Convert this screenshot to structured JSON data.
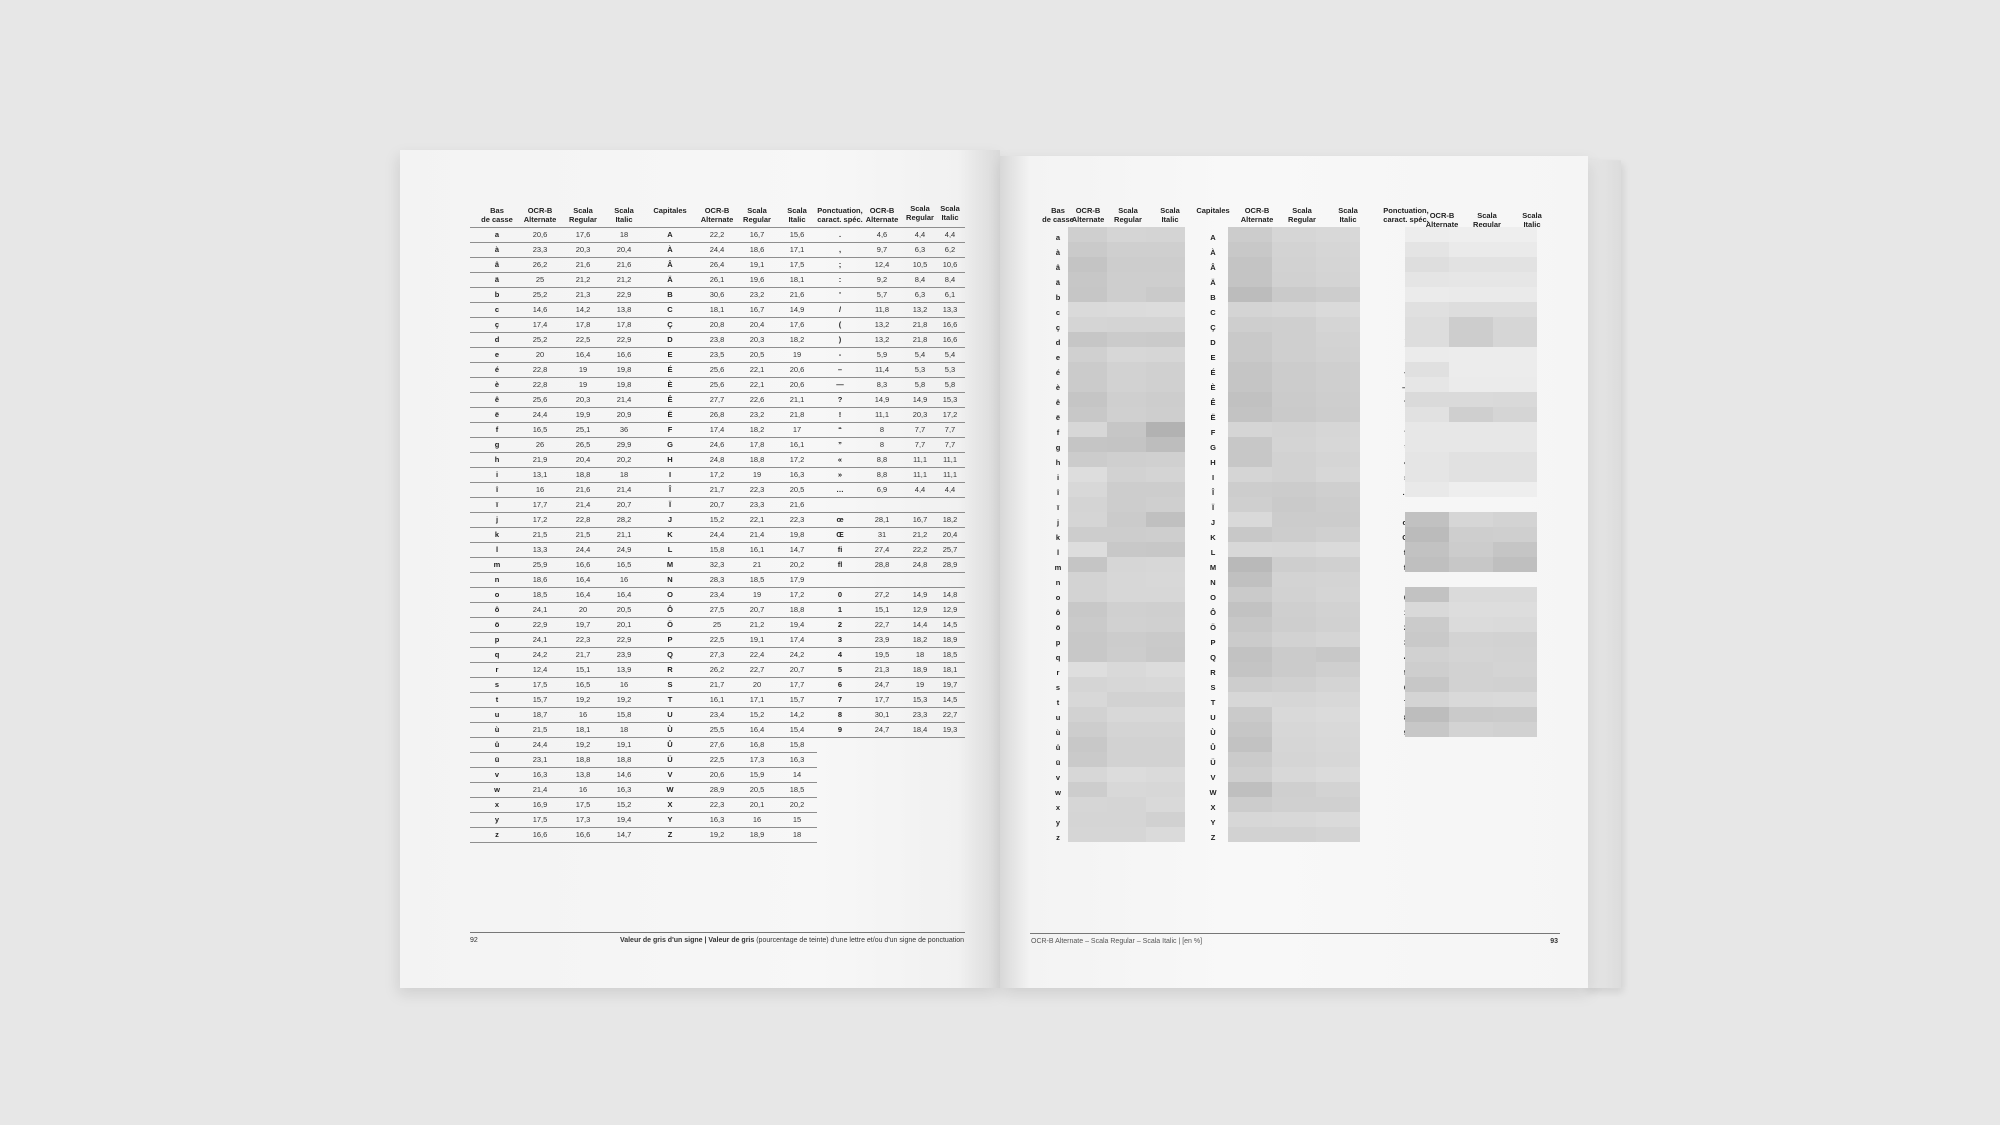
{
  "headers": [
    "Bas\nde casse",
    "OCR-B\nAlternate",
    "Scala\nRegular",
    "Scala\nItalic",
    "Capitales",
    "OCR-B\nAlternate",
    "Scala\nRegular",
    "Scala\nItalic",
    "Ponctuation,\ncaract. spéc.",
    "OCR-B\nAlternate",
    "Scala\nRegular",
    "Scala\nItalic"
  ],
  "table": {
    "lowercase": [
      [
        "a",
        "20,6",
        "17,6",
        "18"
      ],
      [
        "à",
        "23,3",
        "20,3",
        "20,4"
      ],
      [
        "â",
        "26,2",
        "21,6",
        "21,6"
      ],
      [
        "ä",
        "25",
        "21,2",
        "21,2"
      ],
      [
        "b",
        "25,2",
        "21,3",
        "22,9"
      ],
      [
        "c",
        "14,6",
        "14,2",
        "13,8"
      ],
      [
        "ç",
        "17,4",
        "17,8",
        "17,8"
      ],
      [
        "d",
        "25,2",
        "22,5",
        "22,9"
      ],
      [
        "e",
        "20",
        "16,4",
        "16,6"
      ],
      [
        "é",
        "22,8",
        "19",
        "19,8"
      ],
      [
        "è",
        "22,8",
        "19",
        "19,8"
      ],
      [
        "ê",
        "25,6",
        "20,3",
        "21,4"
      ],
      [
        "ë",
        "24,4",
        "19,9",
        "20,9"
      ],
      [
        "f",
        "16,5",
        "25,1",
        "36"
      ],
      [
        "g",
        "26",
        "26,5",
        "29,9"
      ],
      [
        "h",
        "21,9",
        "20,4",
        "20,2"
      ],
      [
        "i",
        "13,1",
        "18,8",
        "18"
      ],
      [
        "î",
        "16",
        "21,6",
        "21,4"
      ],
      [
        "ï",
        "17,7",
        "21,4",
        "20,7"
      ],
      [
        "j",
        "17,2",
        "22,8",
        "28,2"
      ],
      [
        "k",
        "21,5",
        "21,5",
        "21,1"
      ],
      [
        "l",
        "13,3",
        "24,4",
        "24,9"
      ],
      [
        "m",
        "25,9",
        "16,6",
        "16,5"
      ],
      [
        "n",
        "18,6",
        "16,4",
        "16"
      ],
      [
        "o",
        "18,5",
        "16,4",
        "16,4"
      ],
      [
        "ô",
        "24,1",
        "20",
        "20,5"
      ],
      [
        "ö",
        "22,9",
        "19,7",
        "20,1"
      ],
      [
        "p",
        "24,1",
        "22,3",
        "22,9"
      ],
      [
        "q",
        "24,2",
        "21,7",
        "23,9"
      ],
      [
        "r",
        "12,4",
        "15,1",
        "13,9"
      ],
      [
        "s",
        "17,5",
        "16,5",
        "16"
      ],
      [
        "t",
        "15,7",
        "19,2",
        "19,2"
      ],
      [
        "u",
        "18,7",
        "16",
        "15,8"
      ],
      [
        "ù",
        "21,5",
        "18,1",
        "18"
      ],
      [
        "û",
        "24,4",
        "19,2",
        "19,1"
      ],
      [
        "ü",
        "23,1",
        "18,8",
        "18,8"
      ],
      [
        "v",
        "16,3",
        "13,8",
        "14,6"
      ],
      [
        "w",
        "21,4",
        "16",
        "16,3"
      ],
      [
        "x",
        "16,9",
        "17,5",
        "15,2"
      ],
      [
        "y",
        "17,5",
        "17,3",
        "19,4"
      ],
      [
        "z",
        "16,6",
        "16,6",
        "14,7"
      ]
    ],
    "capitals": [
      [
        "A",
        "22,2",
        "16,7",
        "15,6"
      ],
      [
        "À",
        "24,4",
        "18,6",
        "17,1"
      ],
      [
        "Â",
        "26,4",
        "19,1",
        "17,5"
      ],
      [
        "Ä",
        "26,1",
        "19,6",
        "18,1"
      ],
      [
        "B",
        "30,6",
        "23,2",
        "21,6"
      ],
      [
        "C",
        "18,1",
        "16,7",
        "14,9"
      ],
      [
        "Ç",
        "20,8",
        "20,4",
        "17,6"
      ],
      [
        "D",
        "23,8",
        "20,3",
        "18,2"
      ],
      [
        "E",
        "23,5",
        "20,5",
        "19"
      ],
      [
        "É",
        "25,6",
        "22,1",
        "20,6"
      ],
      [
        "È",
        "25,6",
        "22,1",
        "20,6"
      ],
      [
        "Ê",
        "27,7",
        "22,6",
        "21,1"
      ],
      [
        "Ë",
        "26,8",
        "23,2",
        "21,8"
      ],
      [
        "F",
        "17,4",
        "18,2",
        "17"
      ],
      [
        "G",
        "24,6",
        "17,8",
        "16,1"
      ],
      [
        "H",
        "24,8",
        "18,8",
        "17,2"
      ],
      [
        "I",
        "17,2",
        "19",
        "16,3"
      ],
      [
        "Î",
        "21,7",
        "22,3",
        "20,5"
      ],
      [
        "Ï",
        "20,7",
        "23,3",
        "21,6"
      ],
      [
        "J",
        "15,2",
        "22,1",
        "22,3"
      ],
      [
        "K",
        "24,4",
        "21,4",
        "19,8"
      ],
      [
        "L",
        "15,8",
        "16,1",
        "14,7"
      ],
      [
        "M",
        "32,3",
        "21",
        "20,2"
      ],
      [
        "N",
        "28,3",
        "18,5",
        "17,9"
      ],
      [
        "O",
        "23,4",
        "19",
        "17,2"
      ],
      [
        "Ô",
        "27,5",
        "20,7",
        "18,8"
      ],
      [
        "Ö",
        "25",
        "21,2",
        "19,4"
      ],
      [
        "P",
        "22,5",
        "19,1",
        "17,4"
      ],
      [
        "Q",
        "27,3",
        "22,4",
        "24,2"
      ],
      [
        "R",
        "26,2",
        "22,7",
        "20,7"
      ],
      [
        "S",
        "21,7",
        "20",
        "17,7"
      ],
      [
        "T",
        "16,1",
        "17,1",
        "15,7"
      ],
      [
        "U",
        "23,4",
        "15,2",
        "14,2"
      ],
      [
        "Ù",
        "25,5",
        "16,4",
        "15,4"
      ],
      [
        "Û",
        "27,6",
        "16,8",
        "15,8"
      ],
      [
        "Ü",
        "22,5",
        "17,3",
        "16,3"
      ],
      [
        "V",
        "20,6",
        "15,9",
        "14"
      ],
      [
        "W",
        "28,9",
        "20,5",
        "18,5"
      ],
      [
        "X",
        "22,3",
        "20,1",
        "20,2"
      ],
      [
        "Y",
        "16,3",
        "16",
        "15"
      ],
      [
        "Z",
        "19,2",
        "18,9",
        "18"
      ]
    ],
    "punctuation": [
      [
        ".",
        "4,6",
        "4,4",
        "4,4"
      ],
      [
        ",",
        "9,7",
        "6,3",
        "6,2"
      ],
      [
        ";",
        "12,4",
        "10,5",
        "10,6"
      ],
      [
        ":",
        "9,2",
        "8,4",
        "8,4"
      ],
      [
        "'",
        "5,7",
        "6,3",
        "6,1"
      ],
      [
        "/",
        "11,8",
        "13,2",
        "13,3"
      ],
      [
        "(",
        "13,2",
        "21,8",
        "16,6"
      ],
      [
        ")",
        "13,2",
        "21,8",
        "16,6"
      ],
      [
        "-",
        "5,9",
        "5,4",
        "5,4"
      ],
      [
        "–",
        "11,4",
        "5,3",
        "5,3"
      ],
      [
        "—",
        "8,3",
        "5,8",
        "5,8"
      ],
      [
        "?",
        "14,9",
        "14,9",
        "15,3"
      ],
      [
        "!",
        "11,1",
        "20,3",
        "17,2"
      ],
      [
        "“",
        "8",
        "7,7",
        "7,7"
      ],
      [
        "”",
        "8",
        "7,7",
        "7,7"
      ],
      [
        "«",
        "8,8",
        "11,1",
        "11,1"
      ],
      [
        "»",
        "8,8",
        "11,1",
        "11,1"
      ],
      [
        "…",
        "6,9",
        "4,4",
        "4,4"
      ],
      null,
      [
        "œ",
        "28,1",
        "16,7",
        "18,2"
      ],
      [
        "Œ",
        "31",
        "21,2",
        "20,4"
      ],
      [
        "fi",
        "27,4",
        "22,2",
        "25,7"
      ],
      [
        "fl",
        "28,8",
        "24,8",
        "28,9"
      ],
      null,
      [
        "0",
        "27,2",
        "14,9",
        "14,8"
      ],
      [
        "1",
        "15,1",
        "12,9",
        "12,9"
      ],
      [
        "2",
        "22,7",
        "14,4",
        "14,5"
      ],
      [
        "3",
        "23,9",
        "18,2",
        "18,9"
      ],
      [
        "4",
        "19,5",
        "18",
        "18,5"
      ],
      [
        "5",
        "21,3",
        "18,9",
        "18,1"
      ],
      [
        "6",
        "24,7",
        "19",
        "19,7"
      ],
      [
        "7",
        "17,7",
        "15,3",
        "14,5"
      ],
      [
        "8",
        "30,1",
        "23,3",
        "22,7"
      ],
      [
        "9",
        "24,7",
        "18,4",
        "19,3"
      ]
    ]
  },
  "left_page": {
    "page_number": "92",
    "footer_title": "Valeur de gris d'un signe | Valeur de gris",
    "footer_description": " (pourcentage de teinte) d'une lettre et/ou d'un signe de ponctuation"
  },
  "right_page": {
    "page_number": "93",
    "footer_caption": "OCR-B Alternate – Scala Regular – Scala Italic | [en %]",
    "swatch_color_basis": "#000000"
  }
}
